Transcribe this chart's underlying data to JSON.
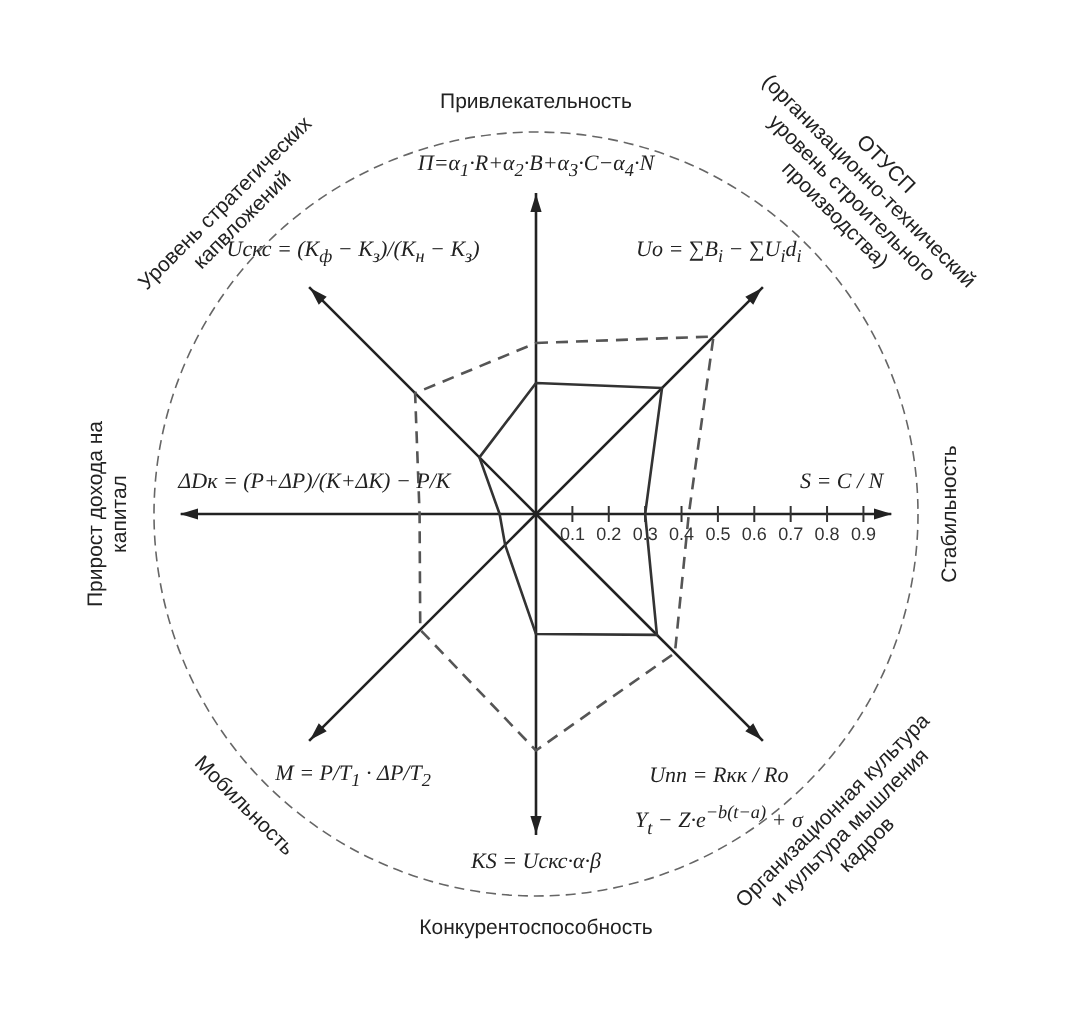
{
  "chart_data": {
    "type": "radar",
    "categories": [
      "Привлекательность",
      "ОТУСП (организационно-технический уровень строительного производства)",
      "Стабильность",
      "Организационная культура и культура мышления кадров",
      "Конкурентоспособность",
      "Мобильность",
      "Прирост дохода на капитал",
      "Уровень стратегических капвложений"
    ],
    "series": [
      {
        "color": "#333333",
        "line_style": "solid",
        "values": [
          0.36,
          0.49,
          0.3,
          0.47,
          0.33,
          0.12,
          0.1,
          0.22
        ]
      },
      {
        "color": "#555555",
        "line_style": "dashed",
        "values": [
          0.47,
          0.69,
          0.42,
          0.54,
          0.65,
          0.45,
          0.32,
          0.47
        ]
      }
    ],
    "ylim": [
      0,
      1.05
    ],
    "yticks": [
      0.1,
      0.2,
      0.3,
      0.4,
      0.5,
      0.6,
      0.7,
      0.8,
      0.9
    ],
    "marker": "none",
    "annotations": [
      "П=α$_{1}$·R+α$_{2}$·B+α$_{3}$·C−α$_{4}$·N",
      "Uо = ∑B$_{i}$ − ∑U$_{i}$d$_{i}$",
      "S = C / N",
      "Uпп = Rкк / Rо",
      "KS = Uскс·α·β",
      "M = P/T$_{1}$ · ΔP/T$_{2}$",
      "ΔDк = (P+ΔP)/(K+ΔK) − P/K",
      "Uскс = (K$_{ф}$ − K$_{з}$)/(K$_{н}$ − K$_{з}$)",
      "Y$_{t}$ − Z·e$^{−b(t−a)}$ + σ"
    ]
  }
}
